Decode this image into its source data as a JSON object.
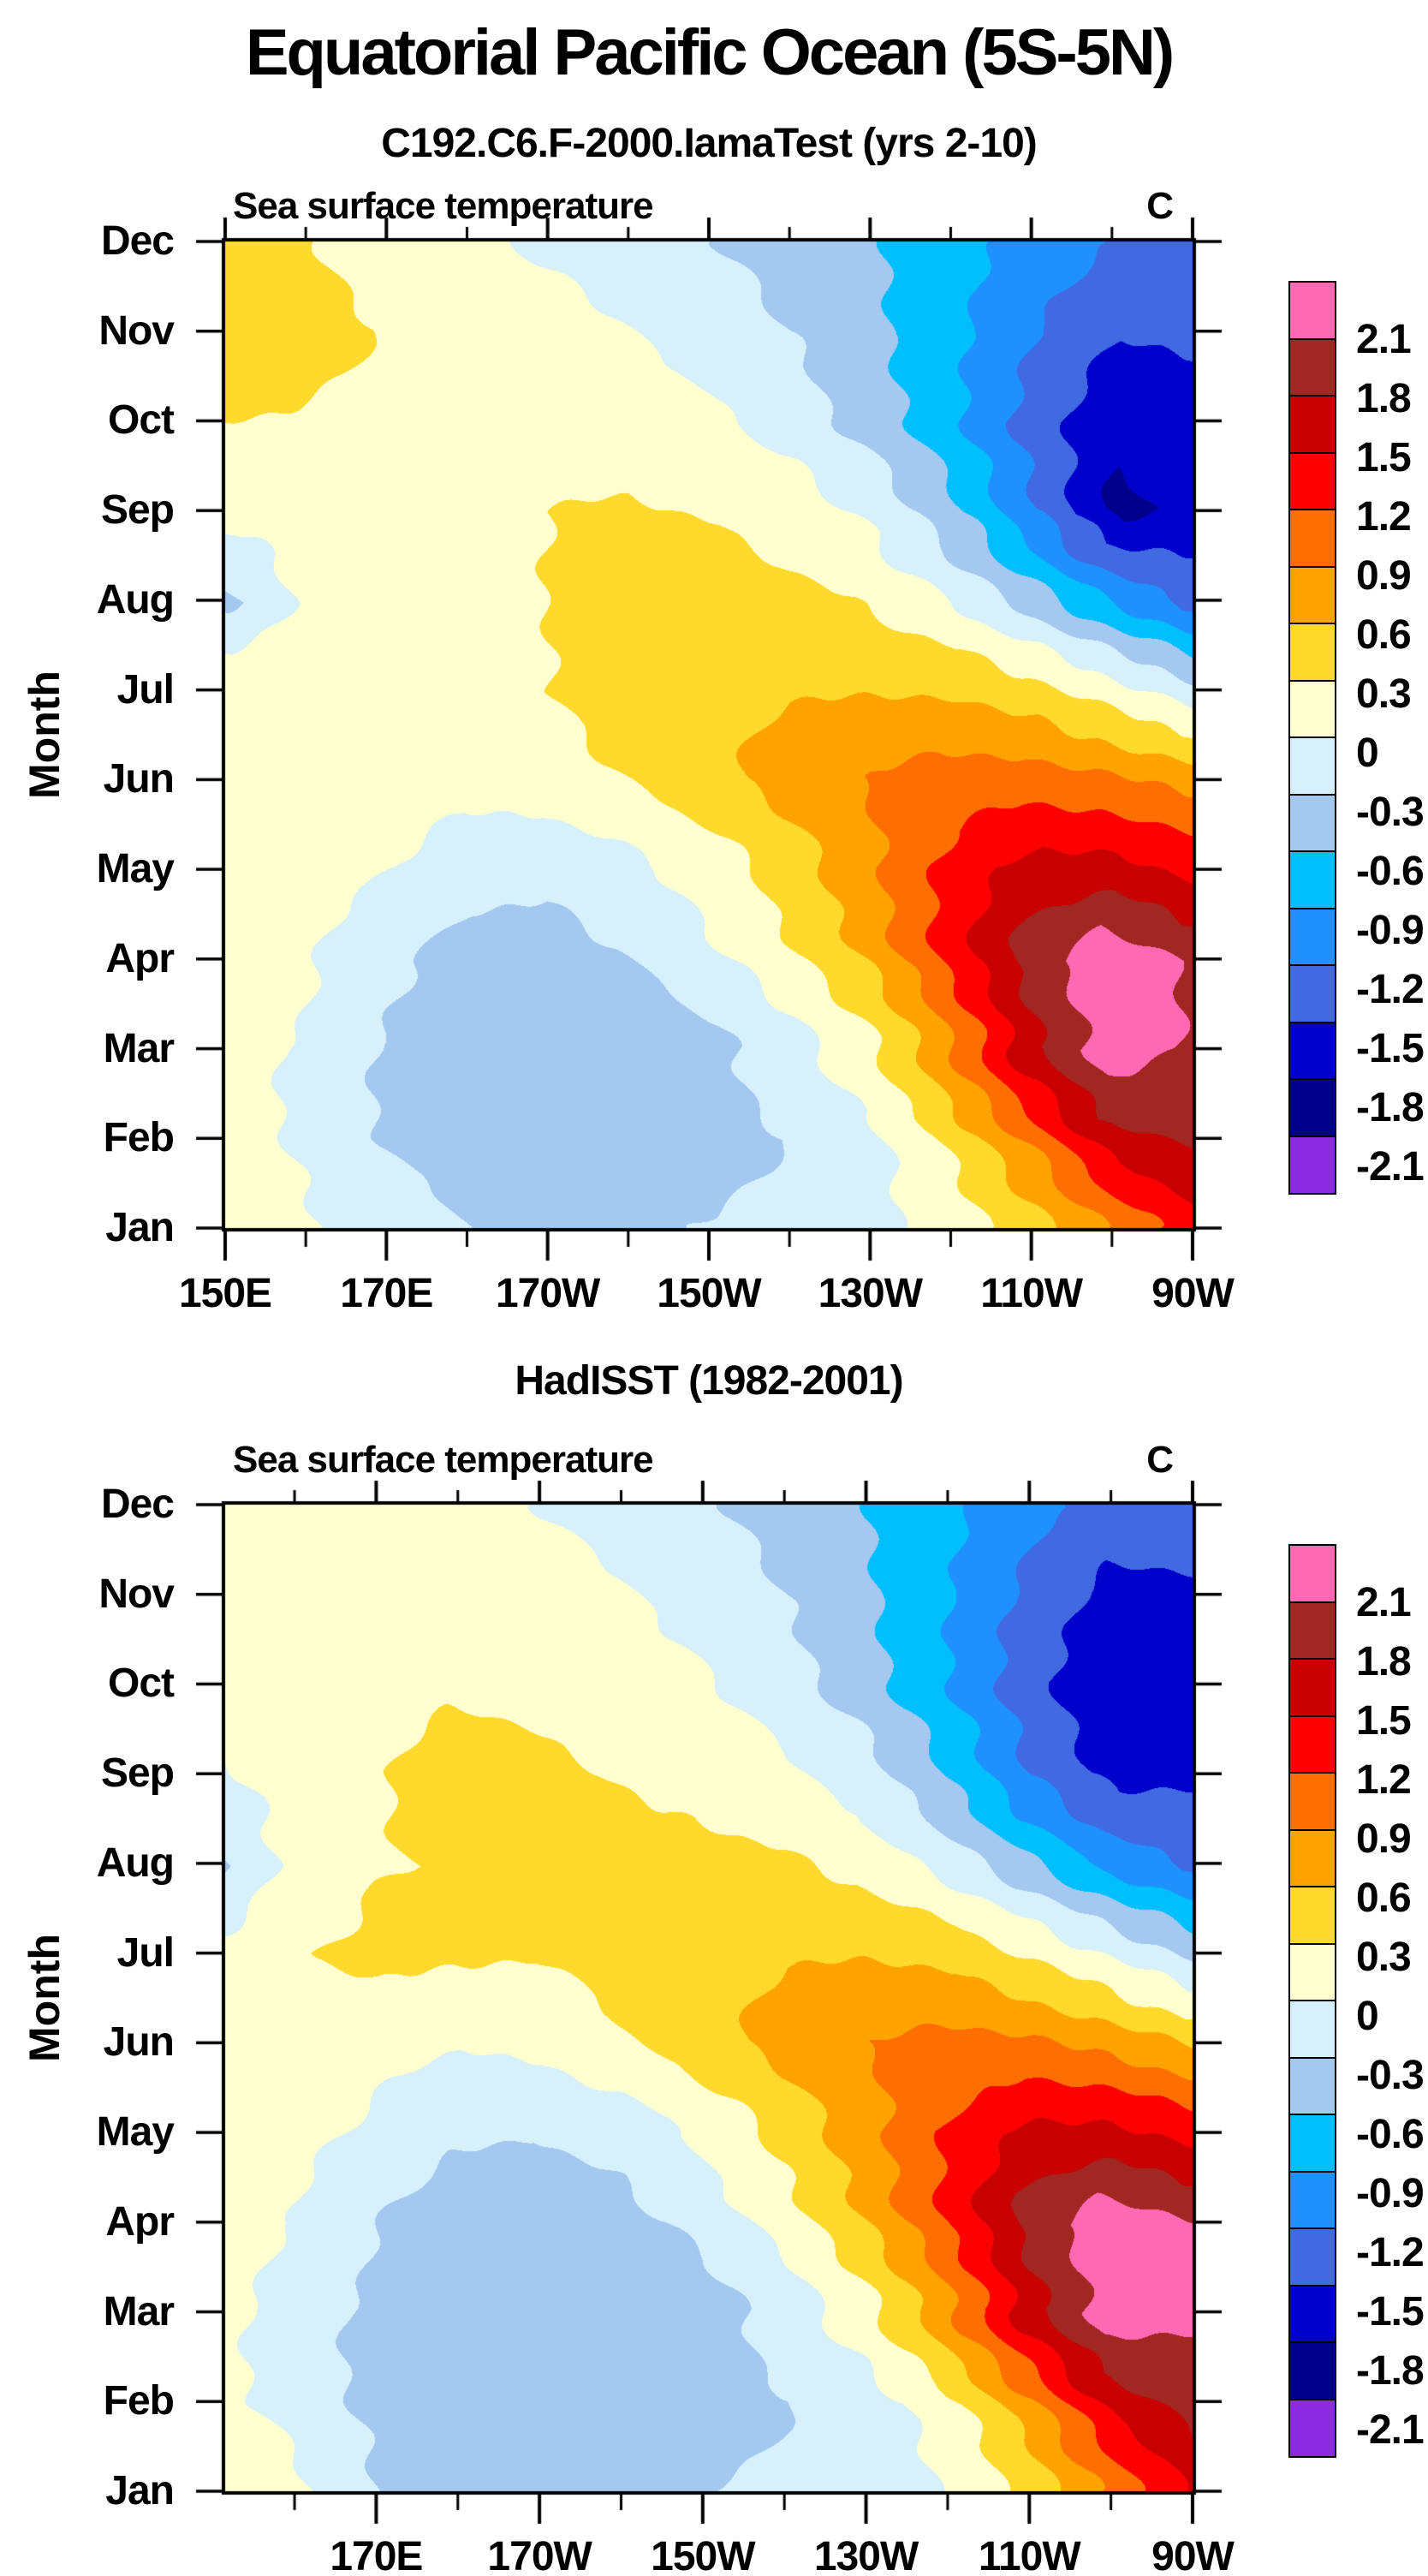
{
  "main_title": "Equatorial Pacific Ocean (5S-5N)",
  "y_axis": {
    "title": "Month",
    "labels_top_down": [
      "Dec",
      "Nov",
      "Oct",
      "Sep",
      "Aug",
      "Jul",
      "Jun",
      "May",
      "Apr",
      "Mar",
      "Feb",
      "Jan"
    ]
  },
  "colorbar": {
    "labels_top_down": [
      "2.1",
      "1.8",
      "1.5",
      "1.2",
      "0.9",
      "0.6",
      "0.3",
      "0",
      "-0.3",
      "-0.6",
      "-0.9",
      "-1.2",
      "-1.5",
      "-1.8",
      "-2.1"
    ],
    "colors_top_down": [
      "#ff69b4",
      "#a22621",
      "#c80000",
      "#ff0000",
      "#ff6e00",
      "#ffa300",
      "#ffd92b",
      "#ffffd0",
      "#d6f0fc",
      "#a4c8f0",
      "#00bfff",
      "#1e90ff",
      "#4169e1",
      "#0000cd",
      "#00008d",
      "#8a2be2"
    ]
  },
  "chart_data": [
    {
      "type": "filled_contour",
      "subtitle": "C192.C6.F-2000.IamaTest (yrs 2-10)",
      "field_label": "Sea surface temperature",
      "unit": "C",
      "xlabel_units": "longitude",
      "ylabel": "Month",
      "contour_min": -2.1,
      "contour_max": 2.1,
      "contour_step": 0.3,
      "x_domain_deg_east": [
        150,
        270
      ],
      "x_grid_deg_east": [
        150,
        160,
        170,
        180,
        190,
        200,
        210,
        220,
        230,
        240,
        250,
        260,
        270
      ],
      "x_ticks": [
        {
          "lon": 150,
          "label": "150E"
        },
        {
          "lon": 160
        },
        {
          "lon": 170,
          "label": "170E"
        },
        {
          "lon": 180
        },
        {
          "lon": 190,
          "label": "170W"
        },
        {
          "lon": 200
        },
        {
          "lon": 210,
          "label": "150W"
        },
        {
          "lon": 220
        },
        {
          "lon": 230,
          "label": "130W"
        },
        {
          "lon": 240
        },
        {
          "lon": 250,
          "label": "110W"
        },
        {
          "lon": 260
        },
        {
          "lon": 270,
          "label": "90W"
        }
      ],
      "months_bottom_to_top": [
        "Jan",
        "Feb",
        "Mar",
        "Apr",
        "May",
        "Jun",
        "Jul",
        "Aug",
        "Sep",
        "Oct",
        "Nov",
        "Dec"
      ],
      "values_by_month": [
        [
          0.22,
          0.02,
          -0.15,
          -0.3,
          -0.35,
          -0.33,
          -0.28,
          -0.2,
          -0.08,
          0.15,
          0.5,
          0.95,
          1.4
        ],
        [
          0.15,
          -0.05,
          -0.32,
          -0.48,
          -0.52,
          -0.48,
          -0.42,
          -0.3,
          -0.1,
          0.35,
          0.95,
          1.7,
          1.85
        ],
        [
          0.1,
          -0.05,
          -0.35,
          -0.55,
          -0.55,
          -0.5,
          -0.38,
          -0.12,
          0.25,
          0.9,
          1.75,
          2.3,
          2.05
        ],
        [
          0.15,
          0.05,
          -0.22,
          -0.42,
          -0.45,
          -0.32,
          -0.1,
          0.22,
          0.62,
          1.28,
          1.95,
          2.35,
          2.05
        ],
        [
          0.2,
          0.15,
          0.0,
          -0.18,
          -0.22,
          -0.08,
          0.15,
          0.45,
          0.85,
          1.32,
          1.62,
          1.62,
          1.42
        ],
        [
          0.25,
          0.2,
          0.15,
          0.1,
          0.15,
          0.3,
          0.5,
          0.72,
          0.92,
          1.05,
          1.05,
          0.95,
          0.8
        ],
        [
          0.28,
          0.22,
          0.2,
          0.22,
          0.3,
          0.45,
          0.55,
          0.58,
          0.58,
          0.55,
          0.4,
          0.12,
          -0.2
        ],
        [
          -0.38,
          0.05,
          0.15,
          0.22,
          0.3,
          0.4,
          0.44,
          0.4,
          0.28,
          0.02,
          -0.4,
          -0.9,
          -1.3
        ],
        [
          0.12,
          0.12,
          0.18,
          0.24,
          0.3,
          0.32,
          0.28,
          0.15,
          -0.08,
          -0.55,
          -1.2,
          -1.9,
          -1.7
        ],
        [
          0.3,
          0.28,
          0.26,
          0.26,
          0.26,
          0.2,
          0.08,
          -0.12,
          -0.4,
          -0.78,
          -1.28,
          -1.7,
          -1.62
        ],
        [
          0.55,
          0.38,
          0.28,
          0.22,
          0.12,
          0.0,
          -0.15,
          -0.32,
          -0.55,
          -0.85,
          -1.2,
          -1.48,
          -1.45
        ],
        [
          0.55,
          0.32,
          0.2,
          0.08,
          -0.05,
          -0.15,
          -0.28,
          -0.4,
          -0.55,
          -0.75,
          -0.98,
          -1.18,
          -1.3
        ]
      ]
    },
    {
      "type": "filled_contour",
      "subtitle": "HadISST (1982-2001)",
      "field_label": "Sea surface temperature",
      "unit": "C",
      "xlabel_units": "longitude",
      "ylabel": "Month",
      "contour_min": -2.1,
      "contour_max": 2.1,
      "contour_step": 0.3,
      "x_domain_deg_east": [
        151.5,
        270
      ],
      "x_grid_deg_east": [
        150,
        160,
        170,
        180,
        190,
        200,
        210,
        220,
        230,
        240,
        250,
        260,
        270
      ],
      "x_ticks": [
        {
          "lon": 160
        },
        {
          "lon": 170,
          "label": "170E"
        },
        {
          "lon": 180
        },
        {
          "lon": 190,
          "label": "170W"
        },
        {
          "lon": 200
        },
        {
          "lon": 210,
          "label": "150W"
        },
        {
          "lon": 220
        },
        {
          "lon": 230,
          "label": "130W"
        },
        {
          "lon": 240
        },
        {
          "lon": 250,
          "label": "110W"
        },
        {
          "lon": 260
        },
        {
          "lon": 270,
          "label": "90W"
        }
      ],
      "months_bottom_to_top": [
        "Jan",
        "Feb",
        "Mar",
        "Apr",
        "May",
        "Jun",
        "Jul",
        "Aug",
        "Sep",
        "Oct",
        "Nov",
        "Dec"
      ],
      "values_by_month": [
        [
          0.3,
          0.05,
          -0.32,
          -0.4,
          -0.4,
          -0.35,
          -0.3,
          -0.25,
          -0.15,
          0.02,
          0.42,
          1.0,
          1.55
        ],
        [
          0.1,
          -0.1,
          -0.38,
          -0.52,
          -0.52,
          -0.48,
          -0.42,
          -0.32,
          -0.18,
          0.18,
          0.8,
          1.6,
          1.95
        ],
        [
          0.08,
          -0.12,
          -0.42,
          -0.58,
          -0.58,
          -0.52,
          -0.42,
          -0.18,
          0.22,
          0.85,
          1.7,
          2.3,
          2.15
        ],
        [
          0.1,
          0.0,
          -0.28,
          -0.48,
          -0.52,
          -0.42,
          -0.22,
          0.12,
          0.58,
          1.2,
          1.92,
          2.32,
          2.1
        ],
        [
          0.15,
          0.1,
          -0.08,
          -0.25,
          -0.28,
          -0.18,
          0.08,
          0.4,
          0.8,
          1.25,
          1.58,
          1.58,
          1.4
        ],
        [
          0.2,
          0.18,
          0.1,
          0.02,
          0.08,
          0.25,
          0.48,
          0.7,
          0.9,
          1.0,
          0.95,
          0.8,
          0.58
        ],
        [
          0.1,
          0.28,
          0.38,
          0.35,
          0.32,
          0.42,
          0.52,
          0.58,
          0.58,
          0.5,
          0.25,
          -0.05,
          -0.38
        ],
        [
          -0.38,
          0.08,
          0.28,
          0.32,
          0.32,
          0.38,
          0.4,
          0.35,
          0.2,
          -0.1,
          -0.52,
          -1.0,
          -1.25
        ],
        [
          -0.05,
          0.15,
          0.28,
          0.45,
          0.35,
          0.28,
          0.2,
          0.05,
          -0.2,
          -0.65,
          -1.25,
          -1.62,
          -1.55
        ],
        [
          0.15,
          0.2,
          0.22,
          0.25,
          0.22,
          0.15,
          0.05,
          -0.15,
          -0.45,
          -0.85,
          -1.35,
          -1.75,
          -1.72
        ],
        [
          0.2,
          0.25,
          0.25,
          0.22,
          0.15,
          0.02,
          -0.12,
          -0.32,
          -0.58,
          -0.92,
          -1.32,
          -1.62,
          -1.58
        ],
        [
          0.25,
          0.22,
          0.18,
          0.1,
          0.0,
          -0.12,
          -0.25,
          -0.4,
          -0.58,
          -0.8,
          -1.08,
          -1.28,
          -1.22
        ]
      ]
    }
  ]
}
